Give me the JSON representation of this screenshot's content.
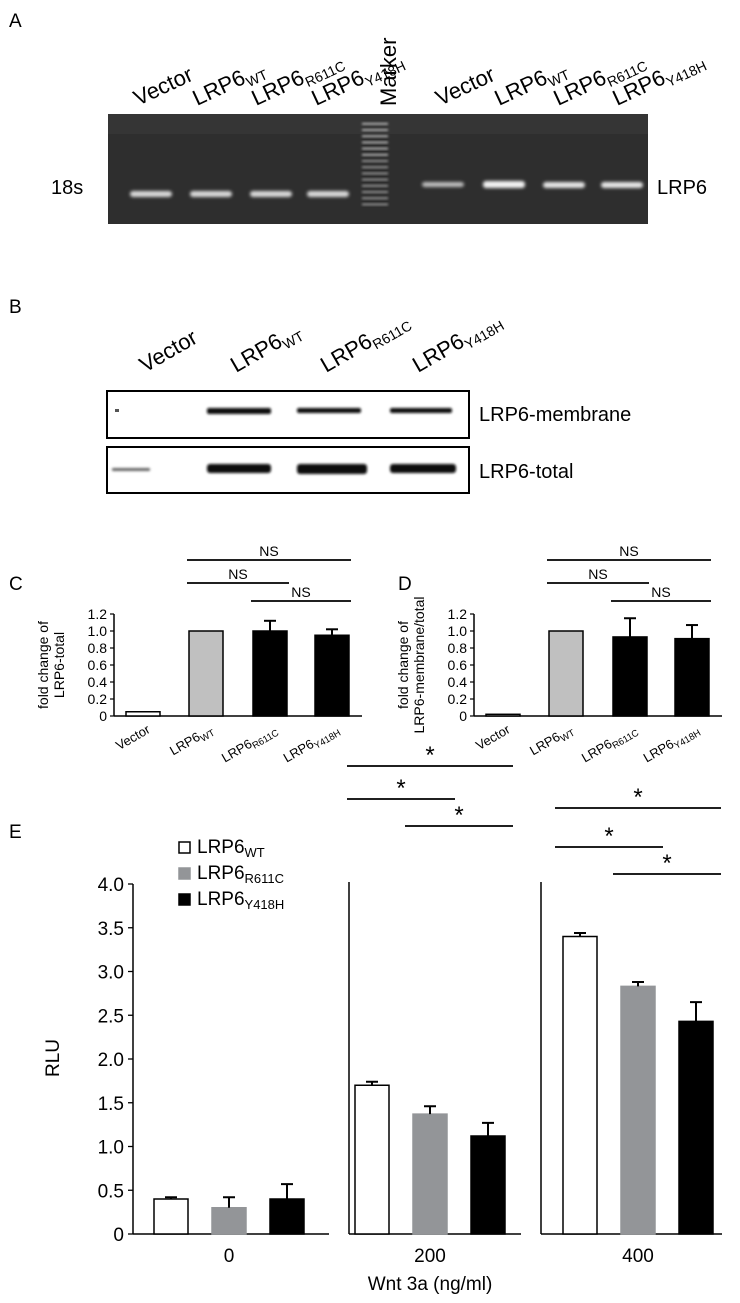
{
  "panels": {
    "a": "A",
    "b": "B",
    "c": "C",
    "d": "D",
    "e": "E"
  },
  "gel": {
    "lanes_left": [
      {
        "main": "Vector",
        "sub": ""
      },
      {
        "main": "LRP6",
        "sub": "WT"
      },
      {
        "main": "LRP6",
        "sub": "R611C"
      },
      {
        "main": "LRP6",
        "sub": "Y418H"
      }
    ],
    "marker": "Marker",
    "lanes_right": [
      {
        "main": "Vector",
        "sub": ""
      },
      {
        "main": "LRP6",
        "sub": "WT"
      },
      {
        "main": "LRP6",
        "sub": "R611C"
      },
      {
        "main": "LRP6",
        "sub": "Y418H"
      }
    ],
    "left_band_label": "18s",
    "right_band_label": "LRP6"
  },
  "blot": {
    "lanes": [
      {
        "main": "Vector",
        "sub": ""
      },
      {
        "main": "LRP6",
        "sub": "WT"
      },
      {
        "main": "LRP6",
        "sub": "R611C"
      },
      {
        "main": "LRP6",
        "sub": "Y418H"
      }
    ],
    "rows": [
      "LRP6-membrane",
      "LRP6-total"
    ]
  },
  "significance": {
    "ns": "NS",
    "star": "*"
  },
  "chart_data": [
    {
      "type": "bar",
      "panel": "C",
      "ylabel_lines": [
        "fold change of",
        "LRP6-total"
      ],
      "ylim": [
        0,
        1.2
      ],
      "yticks": [
        "0",
        "0.2",
        "0.4",
        "0.6",
        "0.8",
        "1.0",
        "1.2"
      ],
      "categories": [
        {
          "main": "Vector",
          "sub": ""
        },
        {
          "main": "LRP6",
          "sub": "WT"
        },
        {
          "main": "LRP6",
          "sub": "R611C"
        },
        {
          "main": "LRP6",
          "sub": "Y418H"
        }
      ],
      "values": [
        0.05,
        1.0,
        1.0,
        0.95
      ],
      "errors": [
        0,
        0,
        0.12,
        0.07
      ],
      "colors": [
        "#ffffff",
        "#c0c0c0",
        "#000000",
        "#000000"
      ],
      "comparisons": [
        {
          "from": 1,
          "to": 3,
          "label": "NS"
        },
        {
          "from": 1,
          "to": 2,
          "label": "NS"
        },
        {
          "from": 2,
          "to": 3,
          "label": "NS"
        }
      ]
    },
    {
      "type": "bar",
      "panel": "D",
      "ylabel_lines": [
        "fold change of",
        "LRP6-membrane/total"
      ],
      "ylim": [
        0,
        1.2
      ],
      "yticks": [
        "0",
        "0.2",
        "0.4",
        "0.6",
        "0.8",
        "1.0",
        "1.2"
      ],
      "categories": [
        {
          "main": "Vector",
          "sub": ""
        },
        {
          "main": "LRP6",
          "sub": "WT"
        },
        {
          "main": "LRP6",
          "sub": "R611C"
        },
        {
          "main": "LRP6",
          "sub": "Y418H"
        }
      ],
      "values": [
        0.02,
        1.0,
        0.93,
        0.91
      ],
      "errors": [
        0,
        0,
        0.22,
        0.16
      ],
      "colors": [
        "#ffffff",
        "#c0c0c0",
        "#000000",
        "#000000"
      ],
      "comparisons": [
        {
          "from": 1,
          "to": 3,
          "label": "NS"
        },
        {
          "from": 1,
          "to": 2,
          "label": "NS"
        },
        {
          "from": 2,
          "to": 3,
          "label": "NS"
        }
      ]
    },
    {
      "type": "bar",
      "panel": "E",
      "ylabel": "RLU",
      "xlabel": "Wnt 3a (ng/ml)",
      "ylim": [
        0,
        4.0
      ],
      "yticks": [
        "0",
        "0.5",
        "1.0",
        "1.5",
        "2.0",
        "2.5",
        "3.0",
        "3.5",
        "4.0"
      ],
      "categories": [
        "0",
        "200",
        "400"
      ],
      "series": [
        {
          "name": {
            "main": "LRP6",
            "sub": "WT"
          },
          "color": "#ffffff",
          "values": [
            0.4,
            1.7,
            3.4
          ],
          "errors": [
            0.02,
            0.04,
            0.04
          ]
        },
        {
          "name": {
            "main": "LRP6",
            "sub": "R611C"
          },
          "color": "#939598",
          "values": [
            0.3,
            1.37,
            2.83
          ],
          "errors": [
            0.12,
            0.09,
            0.05
          ]
        },
        {
          "name": {
            "main": "LRP6",
            "sub": "Y418H"
          },
          "color": "#000000",
          "values": [
            0.4,
            1.12,
            2.43
          ],
          "errors": [
            0.17,
            0.15,
            0.22
          ]
        }
      ],
      "comparisons": [
        {
          "group": 1,
          "from": 0,
          "to": 2,
          "label": "*"
        },
        {
          "group": 1,
          "from": 0,
          "to": 1,
          "label": "*"
        },
        {
          "group": 1,
          "from": 1,
          "to": 2,
          "label": "*"
        },
        {
          "group": 2,
          "from": 0,
          "to": 2,
          "label": "*"
        },
        {
          "group": 2,
          "from": 0,
          "to": 1,
          "label": "*"
        },
        {
          "group": 2,
          "from": 1,
          "to": 2,
          "label": "*"
        }
      ]
    }
  ]
}
